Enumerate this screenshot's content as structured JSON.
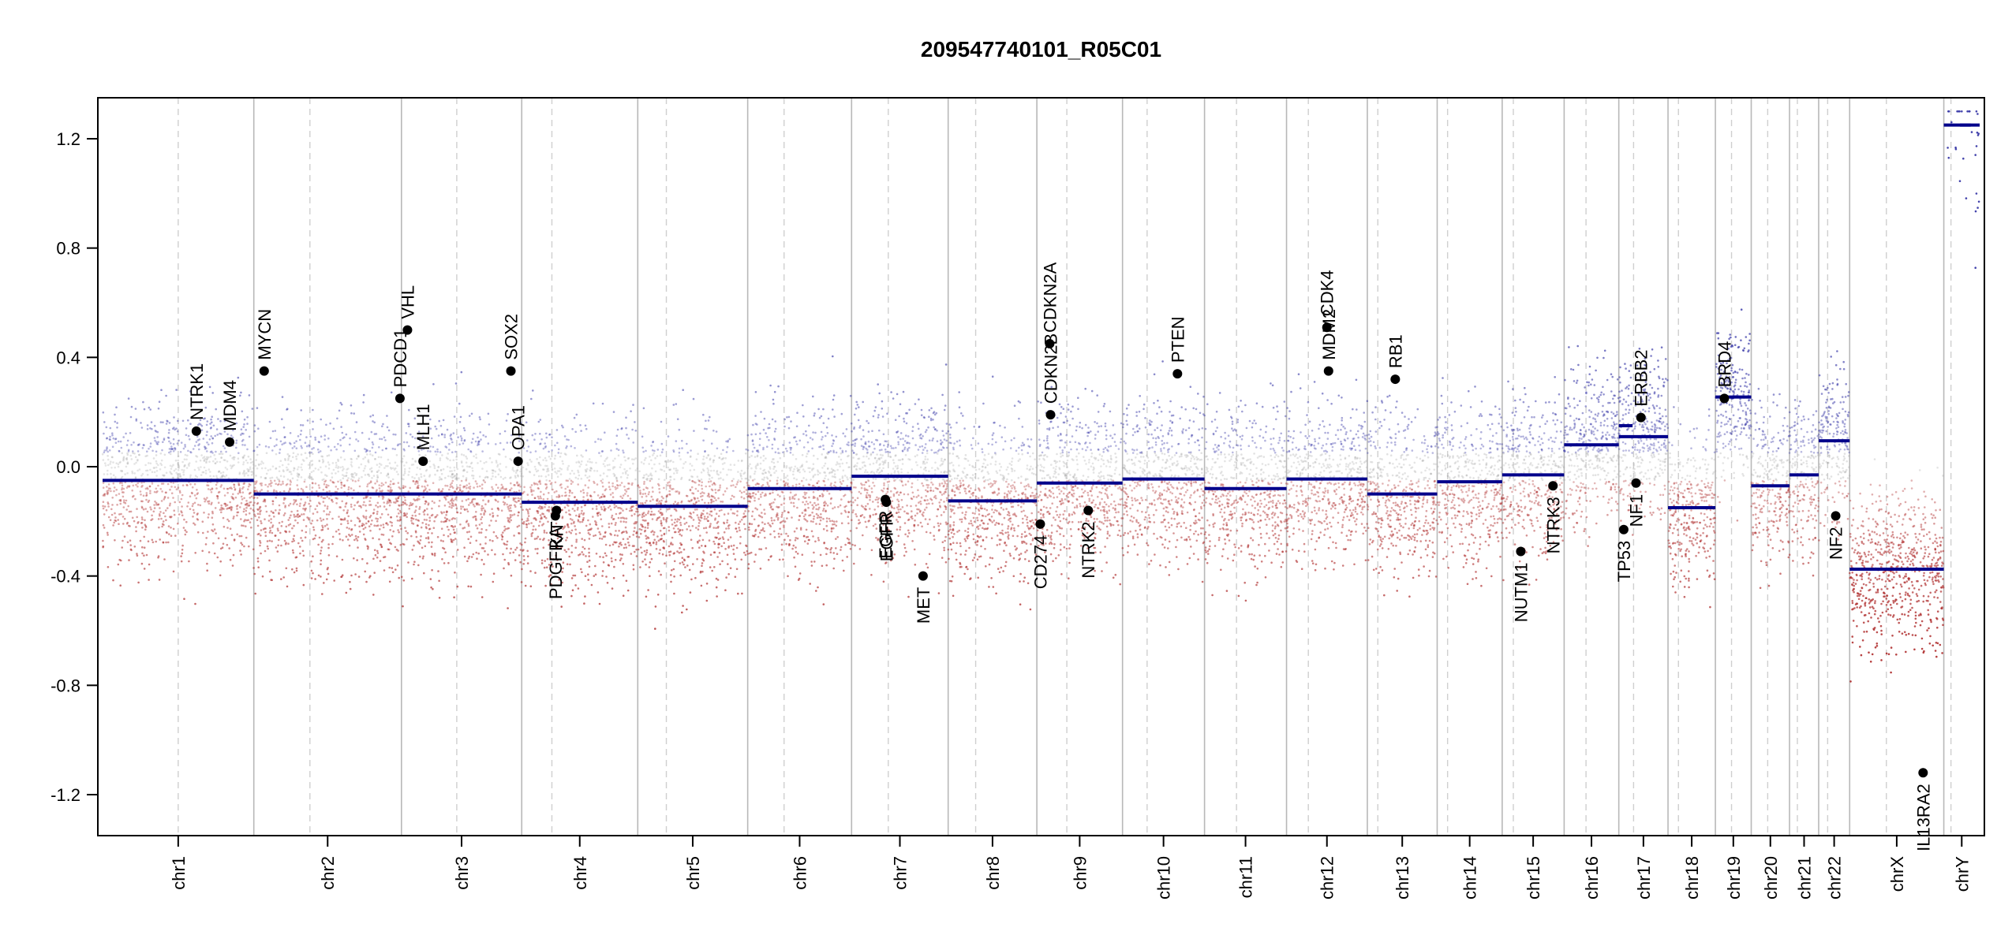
{
  "chart_data": {
    "type": "scatter",
    "title": "209547740101_R05C01",
    "xlabel": "",
    "ylabel": "",
    "ylim": [
      -1.35,
      1.35
    ],
    "yticks": [
      -1.2,
      -0.8,
      -0.4,
      0.0,
      0.4,
      0.8,
      1.2
    ],
    "ytick_labels": [
      "-1.2",
      "-0.8",
      "-0.4",
      "0.0",
      "0.4",
      "0.8",
      "1.2"
    ],
    "grid": false,
    "colors": {
      "gain": "#2b2bb0",
      "loss": "#b22222",
      "neutral": "#b0b0b0",
      "segment": "#00008b",
      "gene": "#000000"
    },
    "chromosomes": [
      {
        "name": "chr1",
        "length": 249,
        "centromere": 0.5,
        "segment": -0.05
      },
      {
        "name": "chr2",
        "length": 243,
        "centromere": 0.38,
        "segment": -0.1
      },
      {
        "name": "chr3",
        "length": 198,
        "centromere": 0.46,
        "segment": -0.1
      },
      {
        "name": "chr4",
        "length": 191,
        "centromere": 0.26,
        "segment": -0.13
      },
      {
        "name": "chr5",
        "length": 181,
        "centromere": 0.26,
        "segment": -0.145
      },
      {
        "name": "chr6",
        "length": 171,
        "centromere": 0.35,
        "segment": -0.08
      },
      {
        "name": "chr7",
        "length": 159,
        "centromere": 0.38,
        "segment": -0.035
      },
      {
        "name": "chr8",
        "length": 146,
        "centromere": 0.31,
        "segment": -0.125
      },
      {
        "name": "chr9",
        "length": 141,
        "centromere": 0.35,
        "segment": -0.06
      },
      {
        "name": "chr10",
        "length": 135,
        "centromere": 0.3,
        "segment": -0.045
      },
      {
        "name": "chr11",
        "length": 135,
        "centromere": 0.39,
        "segment": -0.08
      },
      {
        "name": "chr12",
        "length": 133,
        "centromere": 0.27,
        "segment": -0.045
      },
      {
        "name": "chr13",
        "length": 115,
        "centromere": 0.15,
        "segment": -0.1
      },
      {
        "name": "chr14",
        "length": 107,
        "centromere": 0.16,
        "segment": -0.055
      },
      {
        "name": "chr15",
        "length": 102,
        "centromere": 0.18,
        "segment": -0.03
      },
      {
        "name": "chr16",
        "length": 90,
        "centromere": 0.4,
        "segment": 0.08
      },
      {
        "name": "chr17",
        "length": 81,
        "centromere": 0.3,
        "segment": 0.11
      },
      {
        "name": "chr18",
        "length": 78,
        "centromere": 0.22,
        "segment": -0.15
      },
      {
        "name": "chr19",
        "length": 59,
        "centromere": 0.45,
        "segment": 0.255
      },
      {
        "name": "chr20",
        "length": 63,
        "centromere": 0.43,
        "segment": -0.07
      },
      {
        "name": "chr21",
        "length": 48,
        "centromere": 0.27,
        "segment": -0.03
      },
      {
        "name": "chr22",
        "length": 51,
        "centromere": 0.29,
        "segment": 0.095
      },
      {
        "name": "chrX",
        "length": 155,
        "centromere": 0.39,
        "segment": -0.375
      },
      {
        "name": "chrY",
        "length": 59,
        "centromere": 0.2,
        "segment": 1.25
      }
    ],
    "segments_extra": [
      {
        "chr": "chr17",
        "start": 0.0,
        "end": 0.28,
        "value": 0.15
      },
      {
        "chr": "chrY",
        "start": 0.45,
        "end": 0.75,
        "value": 1.25
      }
    ],
    "genes": [
      {
        "name": "NTRK1",
        "chr": "chr1",
        "pos": 0.62,
        "value": 0.13
      },
      {
        "name": "MDM4",
        "chr": "chr1",
        "pos": 0.84,
        "value": 0.09
      },
      {
        "name": "MYCN",
        "chr": "chr2",
        "pos": 0.07,
        "value": 0.35
      },
      {
        "name": "PDCD1",
        "chr": "chr2",
        "pos": 0.99,
        "value": 0.25
      },
      {
        "name": "VHL",
        "chr": "chr3",
        "pos": 0.05,
        "value": 0.5
      },
      {
        "name": "MLH1",
        "chr": "chr3",
        "pos": 0.18,
        "value": 0.02
      },
      {
        "name": "SOX2",
        "chr": "chr3",
        "pos": 0.91,
        "value": 0.35
      },
      {
        "name": "OPA1",
        "chr": "chr3",
        "pos": 0.97,
        "value": 0.02
      },
      {
        "name": "PDGFRA",
        "chr": "chr4",
        "pos": 0.29,
        "value": -0.18
      },
      {
        "name": "KIT",
        "chr": "chr4",
        "pos": 0.3,
        "value": -0.16
      },
      {
        "name": "EGFR",
        "chr": "chr7",
        "pos": 0.35,
        "value": -0.12
      },
      {
        "name": "EGFR",
        "chr": "chr7",
        "pos": 0.36,
        "value": -0.13
      },
      {
        "name": "MET",
        "chr": "chr7",
        "pos": 0.74,
        "value": -0.4
      },
      {
        "name": "CD274",
        "chr": "chr9",
        "pos": 0.04,
        "value": -0.21
      },
      {
        "name": "CDKN2A",
        "chr": "chr9",
        "pos": 0.15,
        "value": 0.45
      },
      {
        "name": "CDKN2B",
        "chr": "chr9",
        "pos": 0.16,
        "value": 0.19
      },
      {
        "name": "NTRK2",
        "chr": "chr9",
        "pos": 0.6,
        "value": -0.16
      },
      {
        "name": "PTEN",
        "chr": "chr10",
        "pos": 0.67,
        "value": 0.34
      },
      {
        "name": "CDK4",
        "chr": "chr12",
        "pos": 0.5,
        "value": 0.51
      },
      {
        "name": "MDM2",
        "chr": "chr12",
        "pos": 0.52,
        "value": 0.35
      },
      {
        "name": "RB1",
        "chr": "chr13",
        "pos": 0.4,
        "value": 0.32
      },
      {
        "name": "NUTM1",
        "chr": "chr15",
        "pos": 0.3,
        "value": -0.31
      },
      {
        "name": "NTRK3",
        "chr": "chr15",
        "pos": 0.82,
        "value": -0.07
      },
      {
        "name": "TP53",
        "chr": "chr17",
        "pos": 0.1,
        "value": -0.23
      },
      {
        "name": "NF1",
        "chr": "chr17",
        "pos": 0.35,
        "value": -0.06
      },
      {
        "name": "ERBB2",
        "chr": "chr17",
        "pos": 0.45,
        "value": 0.18
      },
      {
        "name": "BRD4",
        "chr": "chr19",
        "pos": 0.25,
        "value": 0.25
      },
      {
        "name": "NF2",
        "chr": "chr22",
        "pos": 0.55,
        "value": -0.18
      },
      {
        "name": "IL13RA2",
        "chr": "chrX",
        "pos": 0.78,
        "value": -1.12
      }
    ]
  }
}
